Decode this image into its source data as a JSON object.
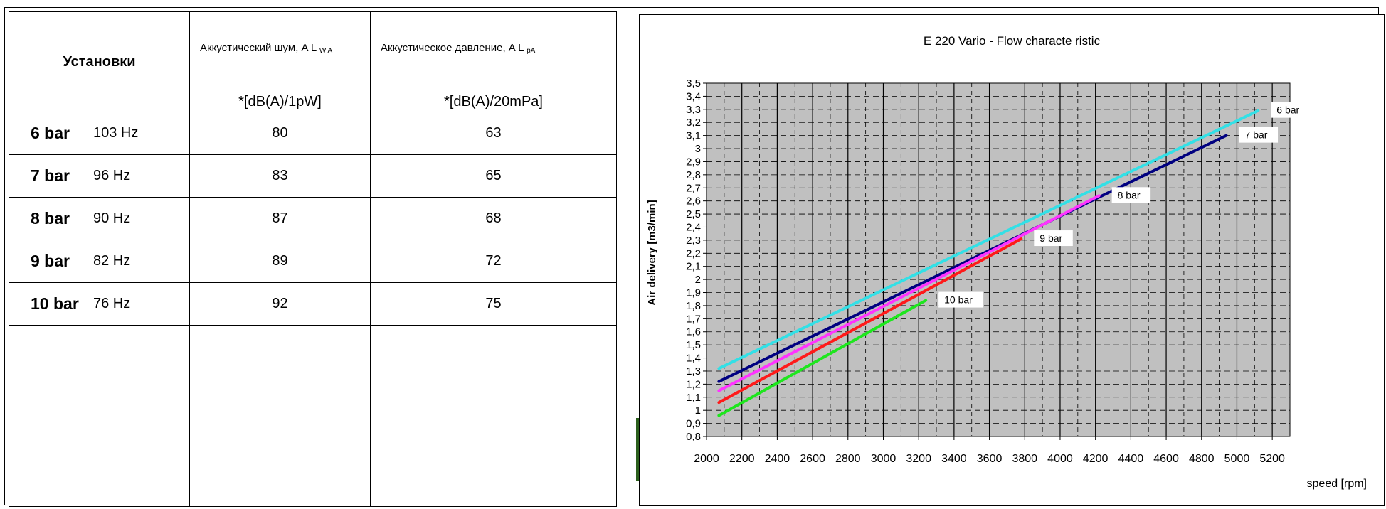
{
  "table": {
    "header": {
      "settings": "Установки",
      "noise_label": "Аккустический шум, A L",
      "noise_sub": "W A",
      "noise_unit": "*[dB(A)/1pW]",
      "pressure_label": "Аккустическое давление, A L",
      "pressure_sub": "pA",
      "pressure_unit": "*[dB(A)/20mPa]"
    },
    "rows": [
      {
        "pressure": "6 bar",
        "freq": "103 Hz",
        "noise": "80",
        "sound_pressure": "63"
      },
      {
        "pressure": "7 bar",
        "freq": "96 Hz",
        "noise": "83",
        "sound_pressure": "65"
      },
      {
        "pressure": "8 bar",
        "freq": "90 Hz",
        "noise": "87",
        "sound_pressure": "68"
      },
      {
        "pressure": "9 bar",
        "freq": "82 Hz",
        "noise": "89",
        "sound_pressure": "72"
      },
      {
        "pressure": "10 bar",
        "freq": "76 Hz",
        "noise": "92",
        "sound_pressure": "75"
      }
    ]
  },
  "chart_data": {
    "type": "line",
    "title": "E 220 Vario - Flow characte ristic",
    "xlabel": "speed [rpm]",
    "ylabel": "Air delivery [m3/min]",
    "xlim": [
      2000,
      5300
    ],
    "ylim": [
      0.8,
      3.5
    ],
    "x_ticks": [
      "2000",
      "2200",
      "2400",
      "2600",
      "2800",
      "3000",
      "3200",
      "3400",
      "3600",
      "3800",
      "4000",
      "4200",
      "4400",
      "4600",
      "4800",
      "5000",
      "5200"
    ],
    "y_ticks": [
      "0,8",
      "0,9",
      "1",
      "1,1",
      "1,2",
      "1,3",
      "1,4",
      "1,5",
      "1,6",
      "1,7",
      "1,8",
      "1,9",
      "2",
      "2,1",
      "2,2",
      "2,3",
      "2,4",
      "2,5",
      "2,6",
      "2,7",
      "2,8",
      "2,9",
      "3",
      "3,1",
      "3,2",
      "3,3",
      "3,4",
      "3,5"
    ],
    "grid": true,
    "plot_background": "#c0c0c0",
    "series": [
      {
        "name": "6 bar",
        "color": "#33e0e6",
        "x": [
          2070,
          5120
        ],
        "y": [
          1.32,
          3.29
        ]
      },
      {
        "name": "7 bar",
        "color": "#000080",
        "x": [
          2070,
          4940
        ],
        "y": [
          1.22,
          3.1
        ]
      },
      {
        "name": "8 bar",
        "color": "#ff33ff",
        "x": [
          2070,
          4220
        ],
        "y": [
          1.15,
          2.64
        ]
      },
      {
        "name": "9 bar",
        "color": "#ff1a1a",
        "x": [
          2070,
          3780
        ],
        "y": [
          1.06,
          2.31
        ]
      },
      {
        "name": "10 bar",
        "color": "#1ee61e",
        "x": [
          2070,
          3240
        ],
        "y": [
          0.96,
          1.84
        ]
      }
    ]
  }
}
